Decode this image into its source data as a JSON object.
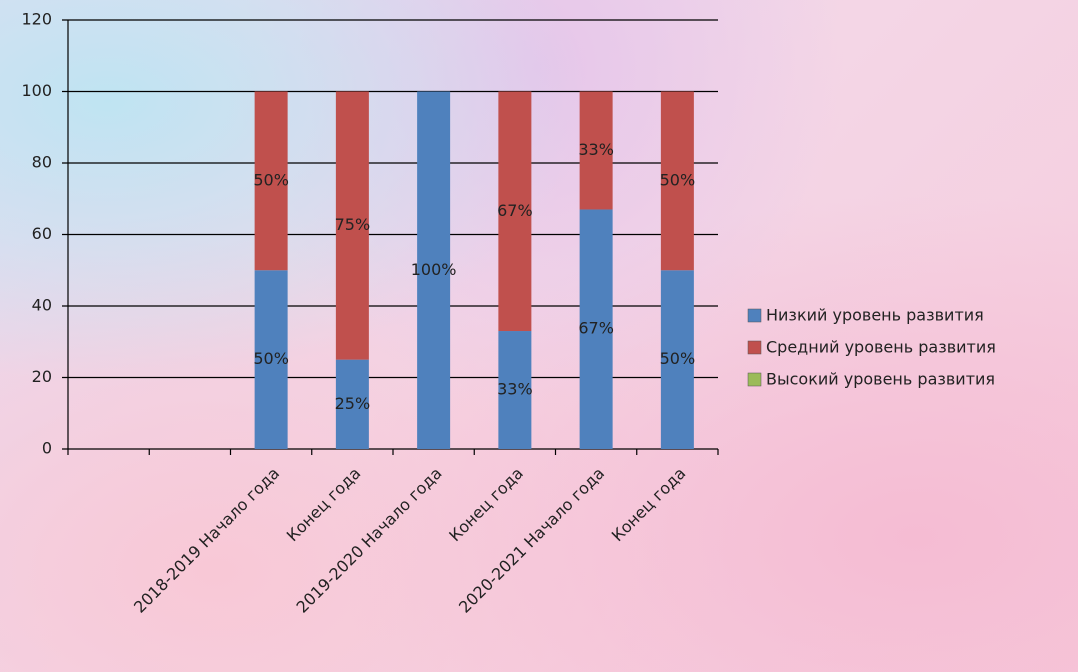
{
  "chart_data": {
    "type": "stacked-bar",
    "categories": [
      null,
      null,
      "2018-2019 Начало года",
      "Конец года",
      "2019-2020 Начало года",
      "Конец года",
      "2020-2021 Начало года",
      "Конец года"
    ],
    "series": [
      {
        "name": "Низкий уровень развития",
        "color": "#4f81bd",
        "values": [
          null,
          null,
          50,
          25,
          100,
          33,
          67,
          50
        ],
        "value_labels": [
          null,
          null,
          "50%",
          "25%",
          "100%",
          "33%",
          "67%",
          "50%"
        ]
      },
      {
        "name": "Средний уровень развития",
        "color": "#c0504d",
        "values": [
          null,
          null,
          50,
          75,
          null,
          67,
          33,
          50
        ],
        "value_labels": [
          null,
          null,
          "50%",
          "75%",
          null,
          "67%",
          "33%",
          "50%"
        ]
      },
      {
        "name": "Высокий уровень развития",
        "color": "#9bbb59",
        "values": [
          null,
          null,
          null,
          null,
          null,
          null,
          null,
          null
        ]
      }
    ],
    "ylim": [
      0,
      120
    ],
    "yticks": [
      0,
      20,
      40,
      60,
      80,
      100,
      120
    ],
    "grid": true,
    "legend": "right"
  }
}
